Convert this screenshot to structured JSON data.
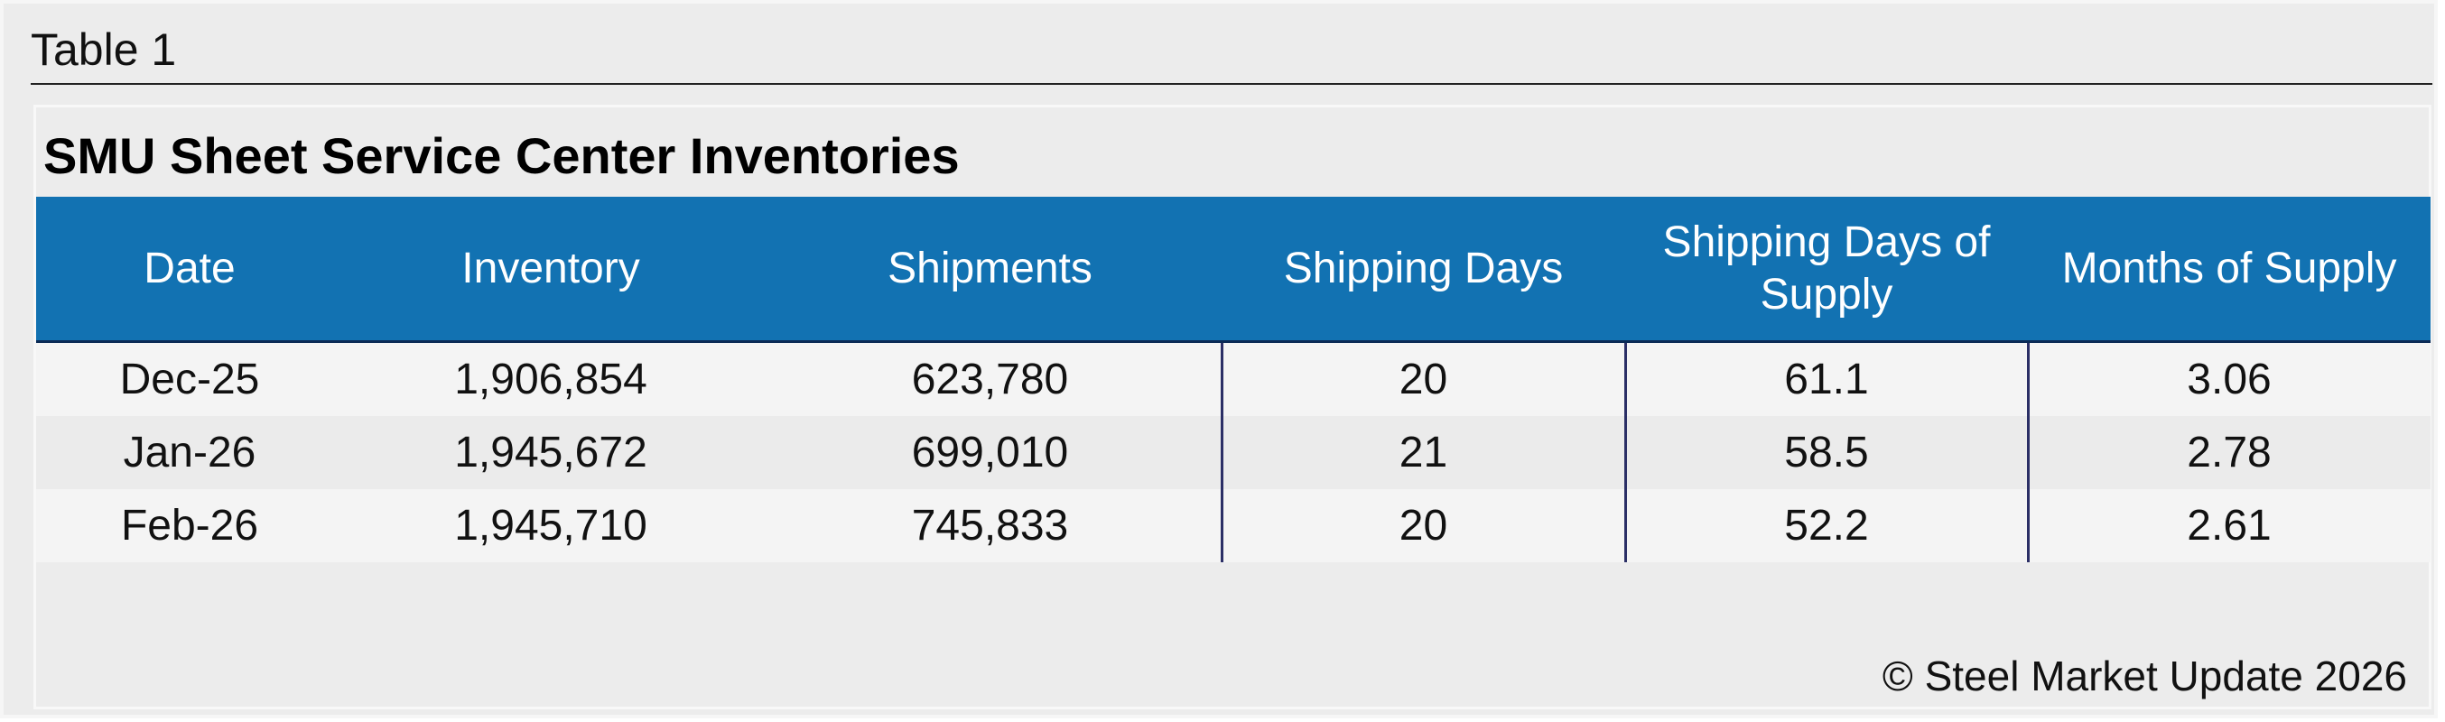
{
  "header": {
    "title": "Table 1"
  },
  "table": {
    "title": "SMU Sheet Service Center Inventories",
    "columns": [
      "Date",
      "Inventory",
      "Shipments",
      "Shipping Days",
      "Shipping Days of Supply",
      "Months of Supply"
    ],
    "rows": [
      [
        "Dec-25",
        "1,906,854",
        "623,780",
        "20",
        "61.1",
        "3.06"
      ],
      [
        "Jan-26",
        "1,945,672",
        "699,010",
        "21",
        "58.5",
        "2.78"
      ],
      [
        "Feb-26",
        "1,945,710",
        "745,833",
        "20",
        "52.2",
        "2.61"
      ]
    ]
  },
  "footer": {
    "text": "© Steel Market Update 2026"
  }
}
